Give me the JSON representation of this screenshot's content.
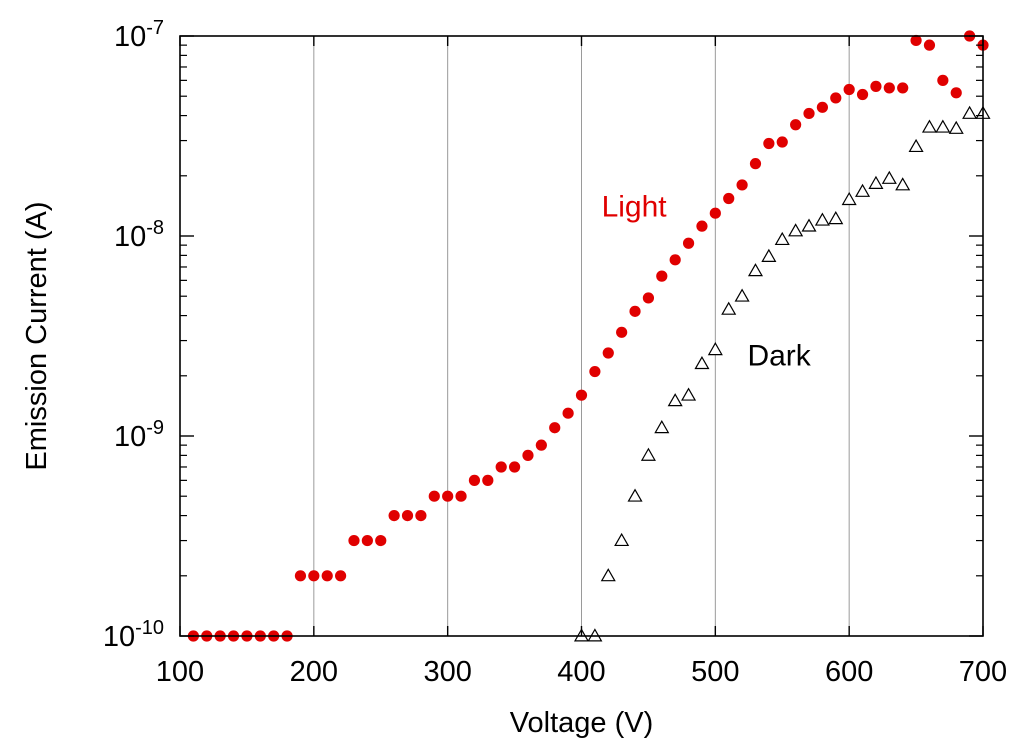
{
  "chart_data": {
    "type": "scatter",
    "title": "",
    "xlabel": "Voltage (V)",
    "ylabel": "Emission Current (A)",
    "xlim": [
      100,
      700
    ],
    "ylim": [
      1e-10,
      1e-07
    ],
    "yscale": "log",
    "grid": "vertical lines at x ticks",
    "xticks": [
      100,
      200,
      300,
      400,
      500,
      600,
      700
    ],
    "xtick_labels": [
      "100",
      "200",
      "300",
      "400",
      "500",
      "600",
      "700"
    ],
    "yticks": [
      1e-10,
      1e-09,
      1e-08,
      1e-07
    ],
    "ytick_labels": [
      {
        "base": "10",
        "exp": "-10"
      },
      {
        "base": "10",
        "exp": "-9"
      },
      {
        "base": "10",
        "exp": "-8"
      },
      {
        "base": "10",
        "exp": "-7"
      }
    ],
    "series": [
      {
        "name": "Light",
        "marker": "filled-circle",
        "color": "#e00000",
        "label_anchor": {
          "x": 415,
          "y": 1.25e-08
        },
        "x": [
          110,
          120,
          130,
          140,
          150,
          160,
          170,
          180,
          190,
          200,
          210,
          220,
          230,
          240,
          250,
          260,
          270,
          280,
          290,
          300,
          310,
          320,
          330,
          340,
          350,
          360,
          370,
          380,
          390,
          400,
          410,
          420,
          430,
          440,
          450,
          460,
          470,
          480,
          490,
          500,
          510,
          520,
          530,
          540,
          550,
          560,
          570,
          580,
          590,
          600,
          610,
          620,
          630,
          640,
          650,
          660,
          670,
          680,
          690,
          700
        ],
        "y": [
          1e-10,
          1e-10,
          1e-10,
          1e-10,
          1e-10,
          1e-10,
          1e-10,
          1e-10,
          2e-10,
          2e-10,
          2e-10,
          2e-10,
          3e-10,
          3e-10,
          3e-10,
          4e-10,
          4e-10,
          4e-10,
          5e-10,
          5e-10,
          5e-10,
          6e-10,
          6e-10,
          7e-10,
          7e-10,
          8e-10,
          9e-10,
          1.1e-09,
          1.3e-09,
          1.6e-09,
          2.1e-09,
          2.6e-09,
          3.3e-09,
          4.2e-09,
          4.9e-09,
          6.3e-09,
          7.6e-09,
          9.2e-09,
          1.12e-08,
          1.3e-08,
          1.54e-08,
          1.8e-08,
          2.3e-08,
          2.9e-08,
          2.95e-08,
          3.6e-08,
          4.1e-08,
          4.4e-08,
          4.9e-08,
          5.4e-08,
          5.1e-08,
          5.6e-08,
          5.5e-08,
          5.5e-08,
          9.5e-08,
          9e-08,
          6e-08,
          5.2e-08,
          1e-07,
          9e-08
        ]
      },
      {
        "name": "Dark",
        "marker": "open-triangle",
        "color": "#000000",
        "label_anchor": {
          "x": 524,
          "y": 2.25e-09
        },
        "x": [
          400,
          410,
          420,
          430,
          440,
          450,
          460,
          470,
          480,
          490,
          500,
          510,
          520,
          530,
          540,
          550,
          560,
          570,
          580,
          590,
          600,
          610,
          620,
          630,
          640,
          650,
          660,
          670,
          680,
          690,
          700
        ],
        "y": [
          1e-10,
          1e-10,
          2e-10,
          3e-10,
          5e-10,
          8e-10,
          1.1e-09,
          1.5e-09,
          1.6e-09,
          2.3e-09,
          2.7e-09,
          4.3e-09,
          5e-09,
          6.7e-09,
          7.9e-09,
          9.6e-09,
          1.06e-08,
          1.12e-08,
          1.2e-08,
          1.22e-08,
          1.52e-08,
          1.67e-08,
          1.83e-08,
          1.94e-08,
          1.8e-08,
          2.8e-08,
          3.5e-08,
          3.5e-08,
          3.45e-08,
          4.1e-08,
          4.1e-08
        ]
      }
    ]
  }
}
